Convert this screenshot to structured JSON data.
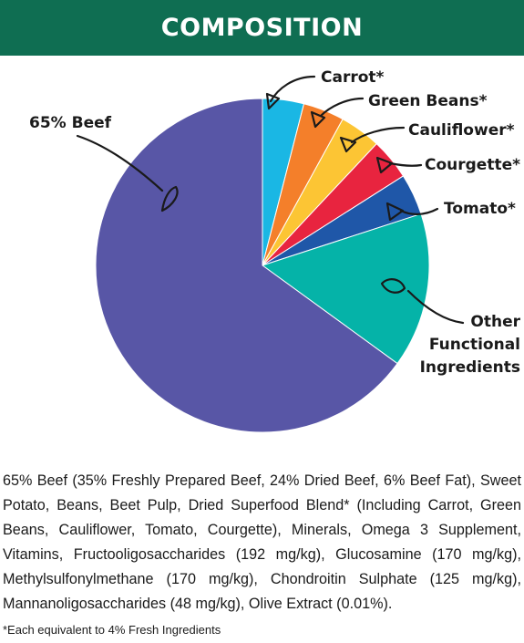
{
  "header": {
    "title": "COMPOSITION"
  },
  "chart_data": {
    "type": "pie",
    "slices": [
      {
        "label": "Carrot*",
        "value": 4,
        "color": "#1ab7e4"
      },
      {
        "label": "Green Beans*",
        "value": 4,
        "color": "#f47f2a"
      },
      {
        "label": "Cauliflower*",
        "value": 4,
        "color": "#fcc534"
      },
      {
        "label": "Courgette*",
        "value": 4,
        "color": "#e8243f"
      },
      {
        "label": "Tomato*",
        "value": 4,
        "color": "#1f57a8"
      },
      {
        "label": "Other Functional Ingredients",
        "value": 15,
        "color": "#05b3a8"
      },
      {
        "label": "65% Beef",
        "value": 65,
        "color": "#5856a6"
      }
    ],
    "start": "12 o'clock",
    "direction": "clockwise"
  },
  "labels": {
    "carrot": "Carrot*",
    "green_beans": "Green Beans*",
    "cauliflower": "Cauliflower*",
    "courgette": "Courgette*",
    "tomato": "Tomato*",
    "other_line1": "Other",
    "other_line2": "Functional",
    "other_line3": "Ingredients",
    "beef": "65% Beef"
  },
  "ingredients_text": "65% Beef (35% Freshly Prepared Beef, 24% Dried Beef, 6% Beef Fat), Sweet Potato, Beans, Beet Pulp, Dried Superfood Blend* (Including Carrot, Green Beans, Cauliflower, Tomato, Courgette), Minerals, Omega 3 Supplement, Vitamins, Fructooligosaccharides (192 mg/kg), Glucosamine (170 mg/kg), Methylsulfonylmethane (170 mg/kg), Chondroitin Sulphate (125 mg/kg), Mannanoligosaccharides (48 mg/kg), Olive Extract (0.01%).",
  "footnote": "*Each equivalent to 4% Fresh Ingredients"
}
